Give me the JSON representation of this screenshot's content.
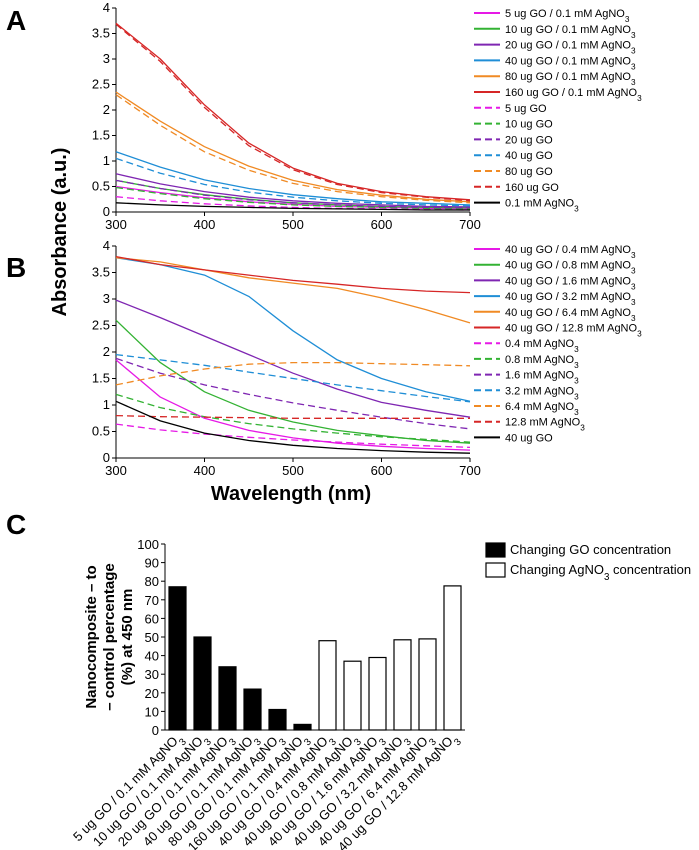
{
  "panel_labels": {
    "a": "A",
    "b": "B",
    "c": "C"
  },
  "shared_axes": {
    "ylabel_ab": "Absorbance (a.u.)",
    "xlabel_ab": "Wavelength (nm)"
  },
  "chart_data": [
    {
      "id": "A",
      "type": "line",
      "xlim": [
        300,
        700
      ],
      "ylim": [
        0,
        4
      ],
      "xticks": [
        "300",
        "400",
        "500",
        "600",
        "700"
      ],
      "yticks": [
        "0",
        "0.5",
        "1",
        "1.5",
        "2",
        "2.5",
        "3",
        "3.5",
        "4"
      ],
      "legend_placement": "right",
      "series": [
        {
          "name": "5 ug GO / 0.1 mM AgNO",
          "sub": "3",
          "color": "#e619e6",
          "dash": false,
          "x": [
            300,
            350,
            400,
            450,
            500,
            550,
            600,
            650,
            700
          ],
          "y": [
            0.5,
            0.38,
            0.28,
            0.2,
            0.15,
            0.11,
            0.09,
            0.07,
            0.06
          ]
        },
        {
          "name": "10 ug GO / 0.1 mM AgNO",
          "sub": "3",
          "color": "#33b233",
          "dash": false,
          "x": [
            300,
            350,
            400,
            450,
            500,
            550,
            600,
            650,
            700
          ],
          "y": [
            0.62,
            0.46,
            0.34,
            0.25,
            0.18,
            0.14,
            0.11,
            0.09,
            0.08
          ]
        },
        {
          "name": "20 ug GO / 0.1 mM AgNO",
          "sub": "3",
          "color": "#7f26b2",
          "dash": false,
          "x": [
            300,
            350,
            400,
            450,
            500,
            550,
            600,
            650,
            700
          ],
          "y": [
            0.75,
            0.55,
            0.4,
            0.29,
            0.22,
            0.17,
            0.14,
            0.11,
            0.1
          ]
        },
        {
          "name": "40 ug GO / 0.1 mM AgNO",
          "sub": "3",
          "color": "#1f8ed6",
          "dash": false,
          "x": [
            300,
            350,
            400,
            450,
            500,
            550,
            600,
            650,
            700
          ],
          "y": [
            1.18,
            0.88,
            0.63,
            0.46,
            0.34,
            0.26,
            0.2,
            0.17,
            0.14
          ]
        },
        {
          "name": "80 ug GO / 0.1 mM AgNO",
          "sub": "3",
          "color": "#f08a24",
          "dash": false,
          "x": [
            300,
            350,
            400,
            450,
            500,
            550,
            600,
            650,
            700
          ],
          "y": [
            2.35,
            1.78,
            1.28,
            0.9,
            0.62,
            0.44,
            0.33,
            0.25,
            0.2
          ]
        },
        {
          "name": "160 ug GO / 0.1 mM AgNO",
          "sub": "3",
          "color": "#d62626",
          "dash": false,
          "x": [
            300,
            350,
            400,
            450,
            500,
            550,
            600,
            650,
            700
          ],
          "y": [
            3.7,
            3.0,
            2.1,
            1.35,
            0.86,
            0.56,
            0.4,
            0.3,
            0.24
          ]
        },
        {
          "name": "5 ug GO",
          "sub": "",
          "color": "#e619e6",
          "dash": true,
          "x": [
            300,
            350,
            400,
            450,
            500,
            550,
            600,
            650,
            700
          ],
          "y": [
            0.3,
            0.22,
            0.16,
            0.12,
            0.09,
            0.07,
            0.06,
            0.05,
            0.04
          ]
        },
        {
          "name": "10 ug GO",
          "sub": "",
          "color": "#33b233",
          "dash": true,
          "x": [
            300,
            350,
            400,
            450,
            500,
            550,
            600,
            650,
            700
          ],
          "y": [
            0.48,
            0.36,
            0.26,
            0.19,
            0.14,
            0.11,
            0.09,
            0.07,
            0.06
          ]
        },
        {
          "name": "20 ug GO",
          "sub": "",
          "color": "#7f26b2",
          "dash": true,
          "x": [
            300,
            350,
            400,
            450,
            500,
            550,
            600,
            650,
            700
          ],
          "y": [
            0.62,
            0.46,
            0.33,
            0.24,
            0.18,
            0.14,
            0.11,
            0.09,
            0.08
          ]
        },
        {
          "name": "40 ug GO",
          "sub": "",
          "color": "#1f8ed6",
          "dash": true,
          "x": [
            300,
            350,
            400,
            450,
            500,
            550,
            600,
            650,
            700
          ],
          "y": [
            1.05,
            0.76,
            0.54,
            0.39,
            0.29,
            0.22,
            0.17,
            0.14,
            0.12
          ]
        },
        {
          "name": "80 ug GO",
          "sub": "",
          "color": "#f08a24",
          "dash": true,
          "x": [
            300,
            350,
            400,
            450,
            500,
            550,
            600,
            650,
            700
          ],
          "y": [
            2.3,
            1.7,
            1.18,
            0.82,
            0.56,
            0.4,
            0.3,
            0.23,
            0.18
          ]
        },
        {
          "name": "160 ug GO",
          "sub": "",
          "color": "#d62626",
          "dash": true,
          "x": [
            300,
            350,
            400,
            450,
            500,
            550,
            600,
            650,
            700
          ],
          "y": [
            3.68,
            2.95,
            2.05,
            1.3,
            0.83,
            0.54,
            0.38,
            0.29,
            0.22
          ]
        },
        {
          "name": "0.1 mM AgNO",
          "sub": "3",
          "color": "#000000",
          "dash": false,
          "x": [
            300,
            350,
            400,
            450,
            500,
            550,
            600,
            650,
            700
          ],
          "y": [
            0.18,
            0.14,
            0.11,
            0.09,
            0.07,
            0.06,
            0.05,
            0.04,
            0.04
          ]
        }
      ]
    },
    {
      "id": "B",
      "type": "line",
      "xlim": [
        300,
        700
      ],
      "ylim": [
        0,
        4
      ],
      "xticks": [
        "300",
        "400",
        "500",
        "600",
        "700"
      ],
      "yticks": [
        "0",
        "0.5",
        "1",
        "1.5",
        "2",
        "2.5",
        "3",
        "3.5",
        "4"
      ],
      "xlabel": "Wavelength (nm)",
      "legend_placement": "right",
      "series": [
        {
          "name": "40 ug GO / 0.4 mM AgNO",
          "sub": "3",
          "color": "#e619e6",
          "dash": false,
          "x": [
            300,
            350,
            400,
            450,
            500,
            550,
            600,
            650,
            700
          ],
          "y": [
            1.85,
            1.15,
            0.75,
            0.52,
            0.38,
            0.28,
            0.22,
            0.18,
            0.15
          ]
        },
        {
          "name": "40 ug GO / 0.8 mM AgNO",
          "sub": "3",
          "color": "#33b233",
          "dash": false,
          "x": [
            300,
            350,
            400,
            450,
            500,
            550,
            600,
            650,
            700
          ],
          "y": [
            2.6,
            1.8,
            1.25,
            0.9,
            0.68,
            0.52,
            0.42,
            0.33,
            0.28
          ]
        },
        {
          "name": "40 ug GO / 1.6 mM AgNO",
          "sub": "3",
          "color": "#7f26b2",
          "dash": false,
          "x": [
            300,
            350,
            400,
            450,
            500,
            550,
            600,
            650,
            700
          ],
          "y": [
            2.98,
            2.65,
            2.3,
            1.95,
            1.6,
            1.3,
            1.05,
            0.9,
            0.77
          ]
        },
        {
          "name": "40 ug GO / 3.2 mM AgNO",
          "sub": "3",
          "color": "#1f8ed6",
          "dash": false,
          "x": [
            300,
            350,
            400,
            450,
            500,
            550,
            600,
            650,
            700
          ],
          "y": [
            3.78,
            3.65,
            3.45,
            3.05,
            2.4,
            1.85,
            1.5,
            1.25,
            1.07
          ]
        },
        {
          "name": "40 ug GO / 6.4 mM AgNO",
          "sub": "3",
          "color": "#f08a24",
          "dash": false,
          "x": [
            300,
            350,
            400,
            450,
            500,
            550,
            600,
            650,
            700
          ],
          "y": [
            3.78,
            3.7,
            3.55,
            3.4,
            3.3,
            3.2,
            3.02,
            2.8,
            2.55
          ]
        },
        {
          "name": "40 ug GO / 12.8 mM AgNO",
          "sub": "3",
          "color": "#d62626",
          "dash": false,
          "x": [
            300,
            350,
            400,
            450,
            500,
            550,
            600,
            650,
            700
          ],
          "y": [
            3.8,
            3.65,
            3.55,
            3.45,
            3.35,
            3.28,
            3.2,
            3.15,
            3.12
          ]
        },
        {
          "name": "0.4 mM AgNO",
          "sub": "3",
          "color": "#e619e6",
          "dash": true,
          "x": [
            300,
            350,
            400,
            450,
            500,
            550,
            600,
            650,
            700
          ],
          "y": [
            0.64,
            0.53,
            0.45,
            0.39,
            0.34,
            0.3,
            0.26,
            0.23,
            0.2
          ]
        },
        {
          "name": "0.8 mM AgNO",
          "sub": "3",
          "color": "#33b233",
          "dash": true,
          "x": [
            300,
            350,
            400,
            450,
            500,
            550,
            600,
            650,
            700
          ],
          "y": [
            1.2,
            0.95,
            0.78,
            0.65,
            0.55,
            0.47,
            0.4,
            0.35,
            0.3
          ]
        },
        {
          "name": "1.6 mM AgNO",
          "sub": "3",
          "color": "#7f26b2",
          "dash": true,
          "x": [
            300,
            350,
            400,
            450,
            500,
            550,
            600,
            650,
            700
          ],
          "y": [
            1.88,
            1.6,
            1.38,
            1.2,
            1.04,
            0.9,
            0.77,
            0.65,
            0.55
          ]
        },
        {
          "name": "3.2 mM AgNO",
          "sub": "3",
          "color": "#1f8ed6",
          "dash": true,
          "x": [
            300,
            350,
            400,
            450,
            500,
            550,
            600,
            650,
            700
          ],
          "y": [
            1.95,
            1.85,
            1.75,
            1.62,
            1.5,
            1.38,
            1.27,
            1.16,
            1.06
          ]
        },
        {
          "name": "6.4 mM AgNO",
          "sub": "3",
          "color": "#f08a24",
          "dash": true,
          "x": [
            300,
            350,
            400,
            450,
            500,
            550,
            600,
            650,
            700
          ],
          "y": [
            1.38,
            1.55,
            1.68,
            1.77,
            1.8,
            1.8,
            1.78,
            1.76,
            1.74
          ]
        },
        {
          "name": "12.8 mM AgNO",
          "sub": "3",
          "color": "#d62626",
          "dash": true,
          "x": [
            300,
            350,
            400,
            450,
            500,
            550,
            600,
            650,
            700
          ],
          "y": [
            0.8,
            0.78,
            0.77,
            0.76,
            0.75,
            0.75,
            0.75,
            0.75,
            0.75
          ]
        },
        {
          "name": "40 ug GO",
          "sub": "",
          "color": "#000000",
          "dash": false,
          "x": [
            300,
            350,
            400,
            450,
            500,
            550,
            600,
            650,
            700
          ],
          "y": [
            1.07,
            0.7,
            0.47,
            0.33,
            0.24,
            0.18,
            0.14,
            0.11,
            0.09
          ]
        }
      ]
    },
    {
      "id": "C",
      "type": "bar",
      "ylim": [
        0,
        100
      ],
      "yticks": [
        "0",
        "10",
        "20",
        "30",
        "40",
        "50",
        "60",
        "70",
        "80",
        "90",
        "100"
      ],
      "ylabel_lines": [
        "Nanocomposite – to",
        "– control percentage",
        "(%) at 450 nm"
      ],
      "legend_placement": "top-right",
      "legend": [
        {
          "label": "Changing GO concentration",
          "sub": "",
          "tail": "",
          "fill": "#000000"
        },
        {
          "label": "Changing AgNO",
          "sub": "3",
          "tail": " concentration",
          "fill": "#ffffff"
        }
      ],
      "categories": [
        {
          "label": "5 ug GO / 0.1 mM AgNO",
          "sub": "3"
        },
        {
          "label": "10 ug GO / 0.1 mM AgNO",
          "sub": "3"
        },
        {
          "label": "20 ug GO / 0.1 mM AgNO",
          "sub": "3"
        },
        {
          "label": "40 ug GO / 0.1 mM AgNO",
          "sub": "3"
        },
        {
          "label": "80 ug GO / 0.1 mM AgNO",
          "sub": "3"
        },
        {
          "label": "160 ug GO / 0.1 mM AgNO",
          "sub": "3"
        },
        {
          "label": "40 ug GO / 0.4 mM AgNO",
          "sub": "3"
        },
        {
          "label": "40 ug GO / 0.8 mM AgNO",
          "sub": "3"
        },
        {
          "label": "40 ug GO / 1.6 mM AgNO",
          "sub": "3"
        },
        {
          "label": "40 ug GO / 3.2 mM AgNO",
          "sub": "3"
        },
        {
          "label": "40 ug GO / 6.4 mM AgNO",
          "sub": "3"
        },
        {
          "label": "40 ug GO / 12.8 mM AgNO",
          "sub": "3"
        }
      ],
      "values": [
        77,
        50,
        34,
        22,
        11,
        3,
        48,
        37,
        39,
        48.5,
        49,
        77.5
      ],
      "groups": [
        "GO",
        "GO",
        "GO",
        "GO",
        "GO",
        "GO",
        "AgNO3",
        "AgNO3",
        "AgNO3",
        "AgNO3",
        "AgNO3",
        "AgNO3"
      ]
    }
  ]
}
